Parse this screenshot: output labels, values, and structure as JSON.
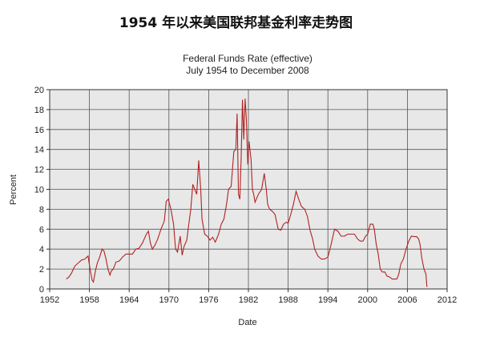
{
  "page_heading": "1954 年以来美国联邦基金利率走势图",
  "chart_data": {
    "type": "line",
    "title": "Federal Funds Rate (effective)",
    "subtitle": "July 1954 to December 2008",
    "xlabel": "Date",
    "ylabel": "Percent",
    "xlim": [
      1952,
      2012
    ],
    "ylim": [
      0,
      20
    ],
    "xticks": [
      1952,
      1958,
      1964,
      1970,
      1976,
      1982,
      1988,
      1994,
      2000,
      2006,
      2012
    ],
    "yticks": [
      0,
      2,
      4,
      6,
      8,
      10,
      12,
      14,
      16,
      18,
      20
    ],
    "grid": true,
    "line_color": "#b22222",
    "plot_background": "#e8e8e8",
    "series": [
      {
        "x": [
          1954.5,
          1954.9,
          1955.3,
          1955.8,
          1956.3,
          1956.8,
          1957.3,
          1957.8,
          1958.1,
          1958.4,
          1958.6,
          1958.9,
          1959.2,
          1959.6,
          1959.9,
          1960.2,
          1960.5,
          1960.8,
          1961.1,
          1961.3,
          1961.6,
          1962.0,
          1962.5,
          1963.0,
          1963.5,
          1964.0,
          1964.5,
          1965.0,
          1965.5,
          1966.0,
          1966.6,
          1966.9,
          1967.2,
          1967.5,
          1967.9,
          1968.3,
          1968.8,
          1969.3,
          1969.6,
          1969.9,
          1970.3,
          1970.7,
          1971.0,
          1971.3,
          1971.7,
          1972.0,
          1972.3,
          1972.7,
          1973.0,
          1973.3,
          1973.6,
          1973.9,
          1974.2,
          1974.5,
          1974.8,
          1975.0,
          1975.4,
          1975.8,
          1976.2,
          1976.6,
          1977.0,
          1977.5,
          1977.9,
          1978.3,
          1978.7,
          1979.0,
          1979.4,
          1979.8,
          1980.1,
          1980.3,
          1980.5,
          1980.7,
          1980.9,
          1981.1,
          1981.3,
          1981.5,
          1981.7,
          1981.9,
          1982.1,
          1982.4,
          1982.6,
          1982.8,
          1983.0,
          1983.5,
          1984.0,
          1984.4,
          1984.7,
          1984.9,
          1985.2,
          1985.6,
          1986.0,
          1986.5,
          1986.9,
          1987.3,
          1987.7,
          1988.0,
          1988.4,
          1988.8,
          1989.2,
          1989.6,
          1990.0,
          1990.5,
          1990.9,
          1991.3,
          1991.7,
          1992.0,
          1992.5,
          1993.0,
          1993.5,
          1994.0,
          1994.5,
          1995.0,
          1995.5,
          1996.0,
          1996.5,
          1997.0,
          1997.5,
          1998.0,
          1998.5,
          1998.9,
          1999.3,
          1999.7,
          2000.0,
          2000.4,
          2000.8,
          2001.0,
          2001.3,
          2001.6,
          2001.9,
          2002.2,
          2002.6,
          2002.9,
          2003.3,
          2003.7,
          2004.0,
          2004.4,
          2004.7,
          2005.0,
          2005.4,
          2005.8,
          2006.2,
          2006.6,
          2007.0,
          2007.4,
          2007.7,
          2007.9,
          2008.2,
          2008.5,
          2008.8,
          2008.95
        ],
        "values": [
          1.0,
          1.2,
          1.6,
          2.3,
          2.6,
          2.9,
          3.0,
          3.3,
          2.0,
          0.9,
          0.7,
          1.8,
          2.6,
          3.3,
          4.0,
          3.8,
          3.0,
          2.0,
          1.4,
          1.8,
          2.0,
          2.7,
          2.8,
          3.2,
          3.5,
          3.5,
          3.5,
          4.0,
          4.1,
          4.6,
          5.5,
          5.8,
          4.6,
          4.0,
          4.4,
          5.0,
          6.0,
          6.8,
          8.8,
          9.0,
          8.0,
          6.5,
          4.0,
          3.7,
          5.3,
          3.4,
          4.3,
          4.9,
          6.5,
          8.0,
          10.5,
          10.0,
          9.5,
          12.9,
          10.0,
          7.0,
          5.5,
          5.3,
          4.9,
          5.2,
          4.7,
          5.5,
          6.5,
          7.0,
          8.5,
          10.0,
          10.3,
          13.8,
          14.0,
          17.6,
          9.5,
          9.0,
          13.0,
          19.0,
          15.0,
          19.1,
          17.0,
          12.5,
          14.8,
          13.0,
          10.0,
          9.5,
          8.7,
          9.5,
          10.0,
          11.6,
          10.0,
          8.5,
          8.0,
          7.8,
          7.5,
          6.0,
          5.9,
          6.5,
          6.7,
          6.6,
          7.5,
          8.5,
          9.8,
          9.0,
          8.3,
          8.0,
          7.3,
          5.9,
          5.0,
          4.0,
          3.3,
          3.0,
          3.0,
          3.2,
          4.5,
          6.0,
          5.8,
          5.3,
          5.3,
          5.5,
          5.5,
          5.5,
          5.0,
          4.8,
          4.8,
          5.3,
          5.5,
          6.5,
          6.5,
          6.0,
          4.5,
          3.5,
          2.0,
          1.7,
          1.7,
          1.3,
          1.2,
          1.0,
          1.0,
          1.0,
          1.5,
          2.5,
          3.0,
          4.0,
          4.8,
          5.3,
          5.25,
          5.25,
          5.0,
          4.5,
          3.0,
          2.0,
          1.5,
          0.2
        ]
      }
    ]
  }
}
